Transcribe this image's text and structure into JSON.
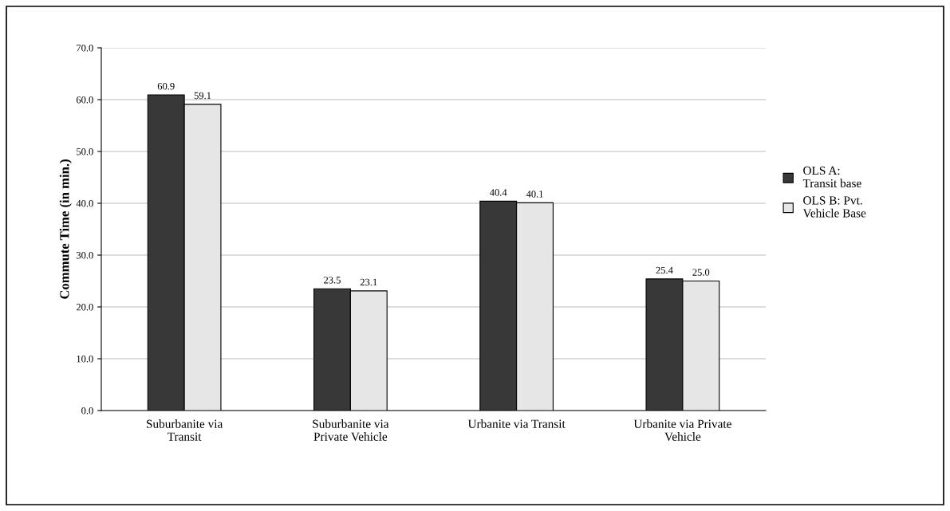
{
  "chart_data": {
    "type": "bar",
    "ylabel": "Commute Time (in min.)",
    "categories": [
      "Suburbanite via\nTransit",
      "Suburbanite via\nPrivate Vehicle",
      "Urbanite via Transit",
      "Urbanite via Private\nVehicle"
    ],
    "series": [
      {
        "name": "OLS A:\nTransit base",
        "color": "#383838",
        "values": [
          60.9,
          23.5,
          40.4,
          25.4
        ],
        "value_labels": [
          "60.9",
          "23.5",
          "40.4",
          "25.4"
        ]
      },
      {
        "name": "OLS B: Pvt.\nVehicle Base",
        "color": "#e6e6e6",
        "values": [
          59.1,
          23.1,
          40.1,
          25.0
        ],
        "value_labels": [
          "59.1",
          "23.1",
          "40.1",
          "25.0"
        ]
      }
    ],
    "ylim": [
      0,
      70
    ],
    "yticks": [
      {
        "value": 0,
        "label": "0.0"
      },
      {
        "value": 10,
        "label": "10.0"
      },
      {
        "value": 20,
        "label": "20.0"
      },
      {
        "value": 30,
        "label": "30.0"
      },
      {
        "value": 40,
        "label": "40.0"
      },
      {
        "value": 50,
        "label": "50.0"
      },
      {
        "value": 60,
        "label": "60.0"
      },
      {
        "value": 70,
        "label": "70.0"
      }
    ],
    "grid": "y",
    "legend": "right"
  }
}
